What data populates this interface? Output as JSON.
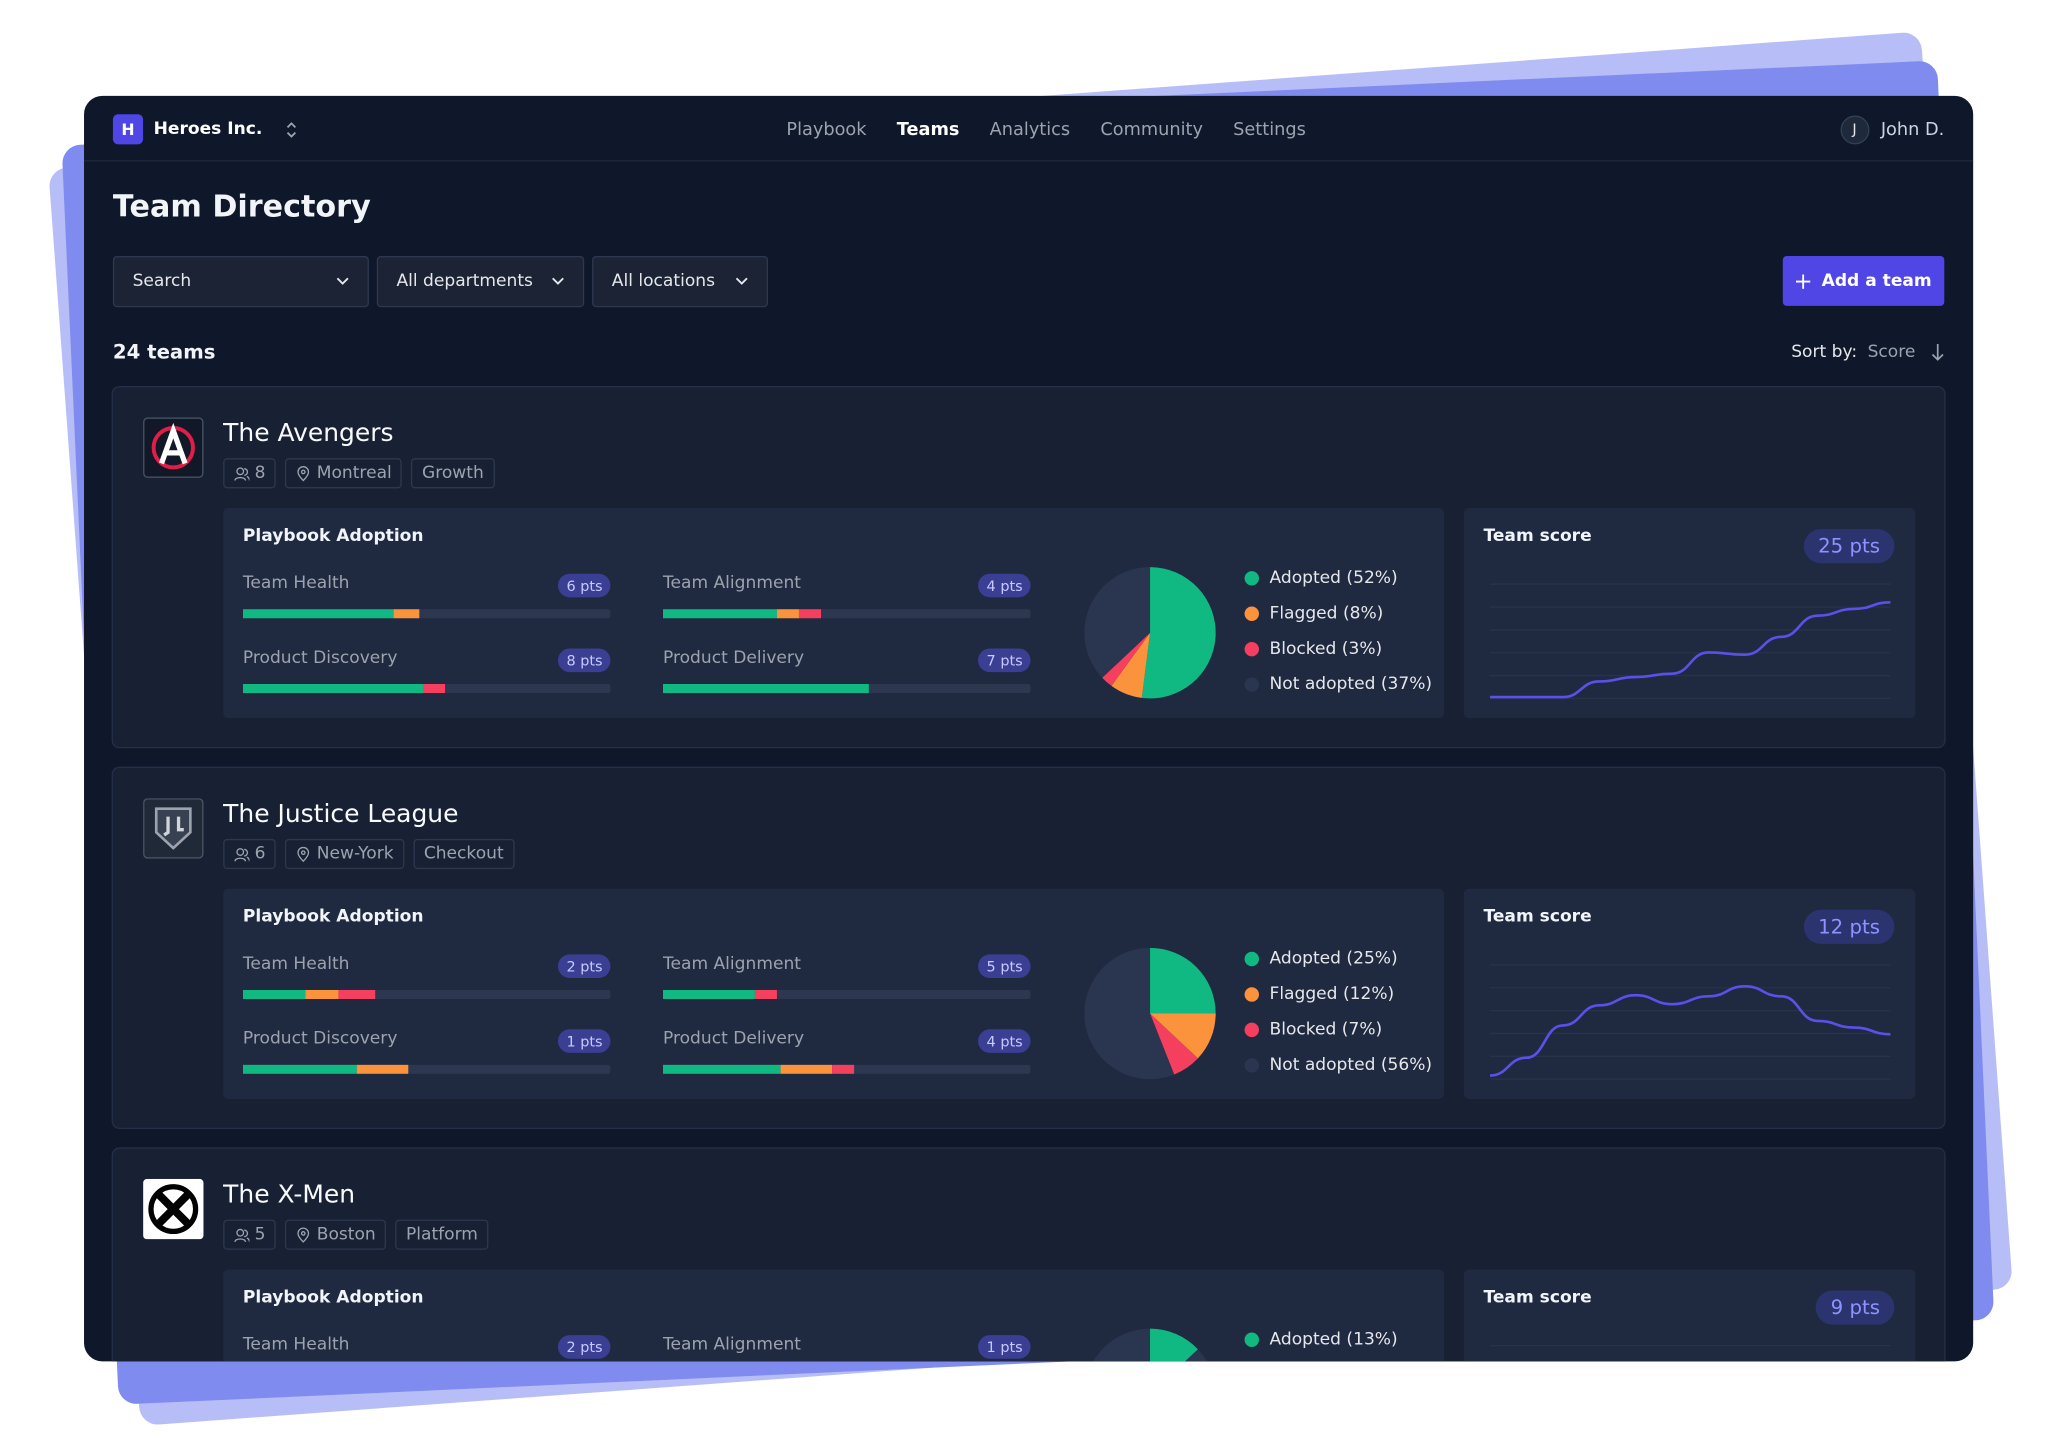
{
  "nav": {
    "org_initial": "H",
    "org": "Heroes Inc.",
    "links": [
      "Playbook",
      "Teams",
      "Analytics",
      "Community",
      "Settings"
    ],
    "active_index": 1,
    "user_initial": "J",
    "user": "John D."
  },
  "page": {
    "title": "Team Directory",
    "filters": [
      "Search",
      "All departments",
      "All locations"
    ],
    "add_button": "Add a team",
    "count": "24 teams",
    "sort_label": "Sort by:",
    "sort_value": "Score"
  },
  "segment_colors": [
    "#10b981",
    "#fb923c",
    "#f43f5e"
  ],
  "pie_colors": [
    "#10b981",
    "#fb923c",
    "#f43f5e",
    "#2a3550"
  ],
  "teams": [
    {
      "name": "The Avengers",
      "members": 8,
      "location": "Montreal",
      "department": "Growth",
      "adoption_title": "Playbook Adoption",
      "metrics": [
        {
          "name": "Team Health",
          "points": 6,
          "points_label": "6 pts",
          "segments": [
            41,
            7,
            0
          ]
        },
        {
          "name": "Team Alignment",
          "points": 4,
          "points_label": "4 pts",
          "segments": [
            31,
            6,
            6
          ]
        },
        {
          "name": "Product Discovery",
          "points": 8,
          "points_label": "8 pts",
          "segments": [
            49,
            0,
            6
          ]
        },
        {
          "name": "Product Delivery",
          "points": 7,
          "points_label": "7 pts",
          "segments": [
            56,
            0,
            0
          ]
        }
      ],
      "pie": {
        "labels": [
          "Adopted (52%)",
          "Flagged (8%)",
          "Blocked (3%)",
          "Not adopted (37%)"
        ],
        "values": [
          52,
          8,
          3,
          37
        ]
      },
      "score_title": "Team score",
      "score": 25,
      "score_label": "25 pts",
      "trend": [
        0,
        0,
        0,
        14,
        18,
        21,
        40,
        38,
        54,
        73,
        79,
        85
      ],
      "trend_ylim": [
        0,
        100
      ]
    },
    {
      "name": "The Justice League",
      "members": 6,
      "location": "New-York",
      "department": "Checkout",
      "adoption_title": "Playbook Adoption",
      "metrics": [
        {
          "name": "Team Health",
          "points": 2,
          "points_label": "2 pts",
          "segments": [
            17,
            9,
            10
          ]
        },
        {
          "name": "Team Alignment",
          "points": 5,
          "points_label": "5 pts",
          "segments": [
            25,
            0,
            6
          ]
        },
        {
          "name": "Product Discovery",
          "points": 1,
          "points_label": "1 pts",
          "segments": [
            31,
            14,
            0
          ]
        },
        {
          "name": "Product Delivery",
          "points": 4,
          "points_label": "4 pts",
          "segments": [
            32,
            14,
            6
          ]
        }
      ],
      "pie": {
        "labels": [
          "Adopted (25%)",
          "Flagged (12%)",
          "Blocked (7%)",
          "Not adopted (56%)"
        ],
        "values": [
          25,
          12,
          7,
          56
        ]
      },
      "score_title": "Team score",
      "score": 12,
      "score_label": "12 pts",
      "trend": [
        2,
        18,
        47,
        65,
        74,
        66,
        73,
        82,
        73,
        51,
        45,
        39
      ],
      "trend_ylim": [
        0,
        100
      ]
    },
    {
      "name": "The X-Men",
      "members": 5,
      "location": "Boston",
      "department": "Platform",
      "adoption_title": "Playbook Adoption",
      "metrics": [
        {
          "name": "Team Health",
          "points": 2,
          "points_label": "2 pts"
        },
        {
          "name": "Team Alignment",
          "points": 1,
          "points_label": "1 pts"
        }
      ],
      "pie": {
        "labels": [
          "Adopted (13%)"
        ],
        "values": [
          13
        ]
      },
      "score_title": "Team score",
      "score": 9,
      "score_label": "9 pts"
    }
  ]
}
